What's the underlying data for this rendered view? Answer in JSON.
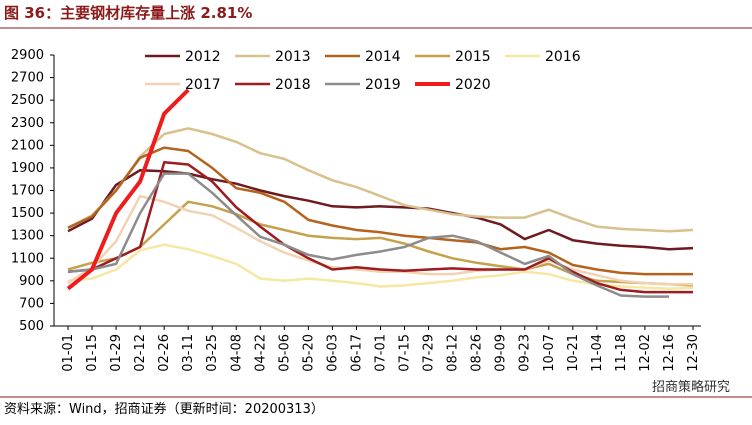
{
  "chart_data": {
    "type": "line",
    "title": "图 36：主要钢材库存量上涨 2.81%",
    "source": "资料来源：Wind，招商证券（更新时间：20200313）",
    "watermark": "招商策略研究",
    "categories": [
      "01-01",
      "01-15",
      "01-29",
      "02-12",
      "02-26",
      "03-11",
      "03-25",
      "04-08",
      "04-22",
      "05-06",
      "05-20",
      "06-03",
      "06-17",
      "07-01",
      "07-15",
      "07-29",
      "08-12",
      "08-26",
      "09-09",
      "09-23",
      "10-07",
      "10-21",
      "11-04",
      "11-18",
      "12-02",
      "12-16",
      "12-30"
    ],
    "ylim": [
      500,
      2900
    ],
    "yticks": [
      500,
      700,
      900,
      1100,
      1300,
      1500,
      1700,
      1900,
      2100,
      2300,
      2500,
      2700,
      2900
    ],
    "series": [
      {
        "name": "2012",
        "color": "#6e1a1f",
        "width": 2.5,
        "values": [
          1340,
          1450,
          1750,
          1880,
          1870,
          1850,
          1800,
          1760,
          1700,
          1650,
          1610,
          1560,
          1550,
          1560,
          1550,
          1540,
          1500,
          1460,
          1400,
          1270,
          1350,
          1260,
          1230,
          1210,
          1200,
          1180,
          1190
        ]
      },
      {
        "name": "2013",
        "color": "#d9c18e",
        "width": 2.5,
        "values": [
          1370,
          1480,
          1700,
          2000,
          2200,
          2250,
          2200,
          2130,
          2030,
          1980,
          1880,
          1790,
          1730,
          1650,
          1570,
          1530,
          1490,
          1470,
          1460,
          1460,
          1530,
          1450,
          1380,
          1360,
          1350,
          1340,
          1350
        ]
      },
      {
        "name": "2014",
        "color": "#b4631f",
        "width": 2.5,
        "values": [
          1370,
          1470,
          1700,
          1990,
          2080,
          2050,
          1900,
          1720,
          1680,
          1600,
          1440,
          1390,
          1350,
          1330,
          1300,
          1280,
          1260,
          1240,
          1180,
          1200,
          1150,
          1040,
          1000,
          970,
          960,
          960,
          960
        ]
      },
      {
        "name": "2015",
        "color": "#c6a14c",
        "width": 2.5,
        "values": [
          1000,
          1060,
          1100,
          1200,
          1400,
          1600,
          1560,
          1490,
          1400,
          1350,
          1300,
          1280,
          1270,
          1280,
          1230,
          1160,
          1100,
          1060,
          1030,
          1000,
          1050,
          960,
          900,
          890,
          880,
          870,
          860
        ]
      },
      {
        "name": "2016",
        "color": "#f6e7a3",
        "width": 2.5,
        "values": [
          900,
          920,
          1000,
          1170,
          1220,
          1180,
          1120,
          1050,
          920,
          900,
          920,
          900,
          880,
          850,
          860,
          880,
          900,
          930,
          950,
          980,
          960,
          900,
          870,
          850,
          840,
          830,
          840
        ]
      },
      {
        "name": "2017",
        "color": "#f1d3b3",
        "width": 2.5,
        "values": [
          880,
          1020,
          1250,
          1650,
          1600,
          1520,
          1480,
          1370,
          1250,
          1150,
          1080,
          1020,
          1000,
          980,
          980,
          960,
          960,
          990,
          1000,
          1000,
          1080,
          1000,
          950,
          900,
          880,
          870,
          870
        ]
      },
      {
        "name": "2018",
        "color": "#9e1b20",
        "width": 2.5,
        "values": [
          980,
          1000,
          1100,
          1200,
          1950,
          1930,
          1780,
          1550,
          1380,
          1220,
          1100,
          1000,
          1020,
          1000,
          990,
          1000,
          1010,
          1000,
          1000,
          1000,
          1100,
          980,
          880,
          820,
          800,
          800,
          800
        ]
      },
      {
        "name": "2019",
        "color": "#8c8c8c",
        "width": 2.5,
        "values": [
          980,
          1000,
          1050,
          1500,
          1850,
          1850,
          1680,
          1480,
          1290,
          1220,
          1130,
          1090,
          1130,
          1160,
          1200,
          1280,
          1300,
          1250,
          1150,
          1050,
          1120,
          960,
          860,
          770,
          760,
          760,
          null
        ]
      },
      {
        "name": "2020",
        "color": "#ee1c1c",
        "width": 4,
        "values": [
          830,
          1000,
          1500,
          1780,
          2380,
          2590,
          null,
          null,
          null,
          null,
          null,
          null,
          null,
          null,
          null,
          null,
          null,
          null,
          null,
          null,
          null,
          null,
          null,
          null,
          null,
          null,
          null
        ]
      }
    ]
  }
}
